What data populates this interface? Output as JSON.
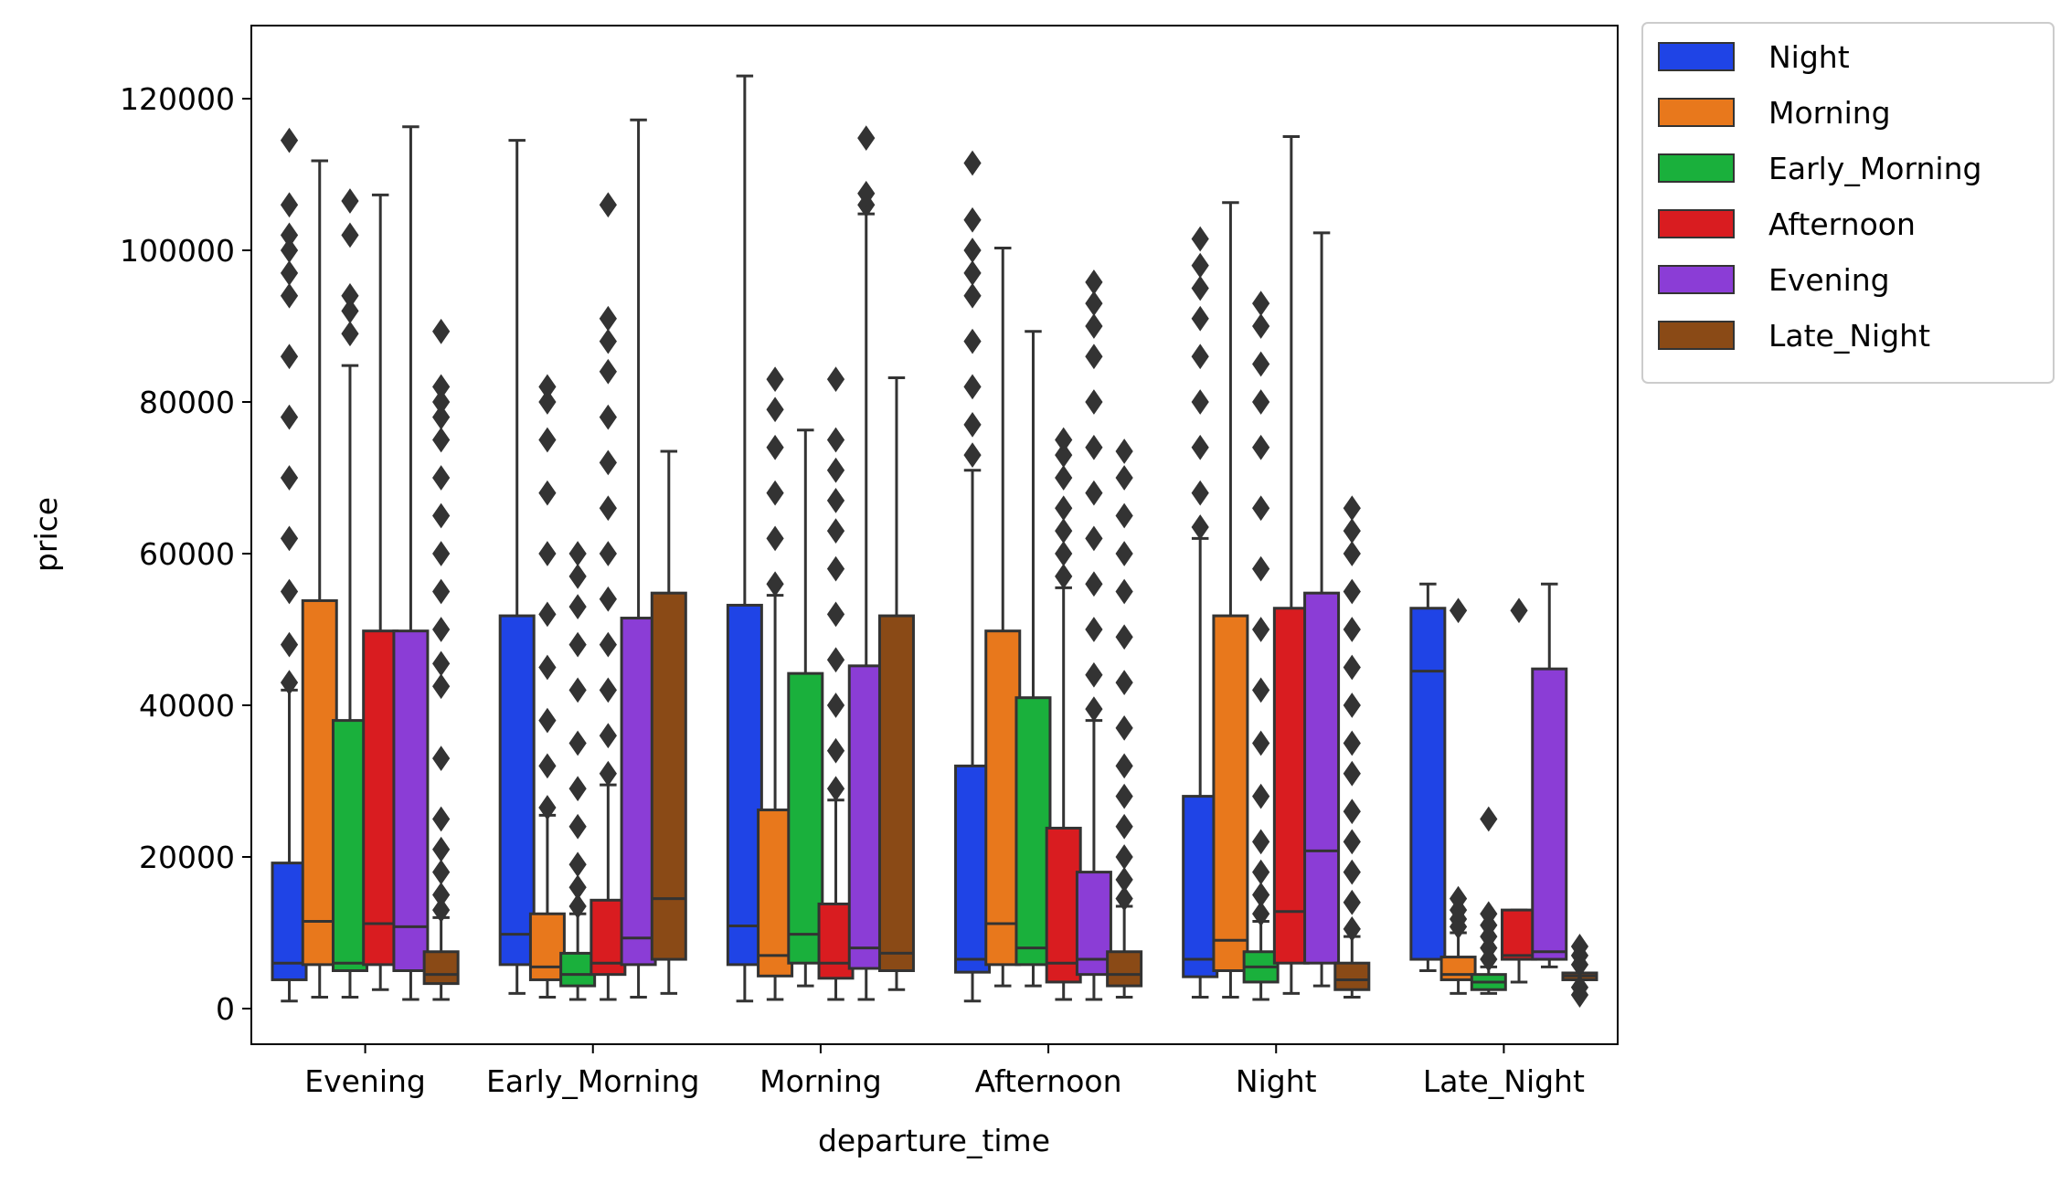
{
  "chart_data": {
    "type": "box",
    "xlabel": "departure_time",
    "ylabel": "price",
    "ylim": [
      -5000,
      129000
    ],
    "yticks": [
      0,
      20000,
      40000,
      60000,
      80000,
      100000,
      120000
    ],
    "ytick_labels": [
      "0",
      "20000",
      "40000",
      "60000",
      "80000",
      "100000",
      "120000"
    ],
    "categories": [
      "Evening",
      "Early_Morning",
      "Morning",
      "Afternoon",
      "Night",
      "Late_Night"
    ],
    "legend_position": "outside-top-right",
    "series": [
      {
        "name": "Night",
        "color": "#1f44e6",
        "boxes": [
          {
            "whislo": 1000,
            "q1": 3800,
            "med": 6000,
            "q3": 19200,
            "whishi": 42000,
            "fliers": [
              43000,
              48000,
              55000,
              62000,
              70000,
              78000,
              86000,
              94000,
              97000,
              100000,
              102000,
              106000,
              114500
            ]
          },
          {
            "whislo": 2000,
            "q1": 5800,
            "med": 9800,
            "q3": 51800,
            "whishi": 114500,
            "fliers": []
          },
          {
            "whislo": 1000,
            "q1": 5800,
            "med": 10900,
            "q3": 53200,
            "whishi": 123000,
            "fliers": []
          },
          {
            "whislo": 1000,
            "q1": 4800,
            "med": 6500,
            "q3": 32000,
            "whishi": 71000,
            "fliers": [
              73000,
              77000,
              82000,
              88000,
              94000,
              97000,
              100000,
              104000,
              111500
            ]
          },
          {
            "whislo": 1500,
            "q1": 4200,
            "med": 6500,
            "q3": 28000,
            "whishi": 62000,
            "fliers": [
              63500,
              68000,
              74000,
              80000,
              86000,
              91000,
              95000,
              98000,
              101500
            ]
          },
          {
            "whislo": 5000,
            "q1": 6500,
            "med": 44500,
            "q3": 52800,
            "whishi": 56000,
            "fliers": []
          }
        ]
      },
      {
        "name": "Morning",
        "color": "#e8781c",
        "boxes": [
          {
            "whislo": 1500,
            "q1": 5800,
            "med": 11500,
            "q3": 53800,
            "whishi": 111800,
            "fliers": []
          },
          {
            "whislo": 1500,
            "q1": 3800,
            "med": 5500,
            "q3": 12500,
            "whishi": 25500,
            "fliers": [
              26500,
              32000,
              38000,
              45000,
              52000,
              60000,
              68000,
              75000,
              80000,
              82000
            ]
          },
          {
            "whislo": 1200,
            "q1": 4300,
            "med": 7000,
            "q3": 26200,
            "whishi": 54500,
            "fliers": [
              56000,
              62000,
              68000,
              74000,
              79000,
              83000
            ]
          },
          {
            "whislo": 3000,
            "q1": 5800,
            "med": 11200,
            "q3": 49800,
            "whishi": 100300,
            "fliers": []
          },
          {
            "whislo": 1500,
            "q1": 5000,
            "med": 9000,
            "q3": 51800,
            "whishi": 106300,
            "fliers": []
          },
          {
            "whislo": 2000,
            "q1": 3800,
            "med": 4500,
            "q3": 6800,
            "whishi": 10000,
            "fliers": [
              10800,
              11800,
              13000,
              14500,
              52500
            ]
          }
        ]
      },
      {
        "name": "Early_Morning",
        "color": "#1ab03c",
        "boxes": [
          {
            "whislo": 1500,
            "q1": 5000,
            "med": 6000,
            "q3": 38000,
            "whishi": 84800,
            "fliers": [
              89000,
              92000,
              94000,
              102000,
              106500
            ]
          },
          {
            "whislo": 1200,
            "q1": 3000,
            "med": 4500,
            "q3": 7300,
            "whishi": 12500,
            "fliers": [
              13500,
              16000,
              19000,
              24000,
              29000,
              35000,
              42000,
              48000,
              53000,
              57000,
              60000
            ]
          },
          {
            "whislo": 3000,
            "q1": 6000,
            "med": 9800,
            "q3": 44200,
            "whishi": 76300,
            "fliers": []
          },
          {
            "whislo": 3000,
            "q1": 5800,
            "med": 8000,
            "q3": 41000,
            "whishi": 89300,
            "fliers": []
          },
          {
            "whislo": 1200,
            "q1": 3500,
            "med": 5500,
            "q3": 7500,
            "whishi": 11500,
            "fliers": [
              12500,
              15000,
              18000,
              22000,
              28000,
              35000,
              42000,
              50000,
              58000,
              66000,
              74000,
              80000,
              85000,
              90000,
              93000
            ]
          },
          {
            "whislo": 2000,
            "q1": 2500,
            "med": 3500,
            "q3": 4500,
            "whishi": 5500,
            "fliers": [
              6500,
              8000,
              9500,
              11000,
              12500,
              25000
            ]
          }
        ]
      },
      {
        "name": "Afternoon",
        "color": "#d91c20",
        "boxes": [
          {
            "whislo": 2500,
            "q1": 5800,
            "med": 11200,
            "q3": 49800,
            "whishi": 107300,
            "fliers": []
          },
          {
            "whislo": 1200,
            "q1": 4500,
            "med": 6000,
            "q3": 14300,
            "whishi": 29500,
            "fliers": [
              31000,
              36000,
              42000,
              48000,
              54000,
              60000,
              66000,
              72000,
              78000,
              84000,
              88000,
              91000,
              106000
            ]
          },
          {
            "whislo": 1200,
            "q1": 4000,
            "med": 6000,
            "q3": 13800,
            "whishi": 27500,
            "fliers": [
              29000,
              34000,
              40000,
              46000,
              52000,
              58000,
              63000,
              67000,
              71000,
              75000,
              83000
            ]
          },
          {
            "whislo": 1200,
            "q1": 3500,
            "med": 6000,
            "q3": 23800,
            "whishi": 55500,
            "fliers": [
              57000,
              60000,
              63000,
              66000,
              70000,
              73000,
              75000
            ]
          },
          {
            "whislo": 2000,
            "q1": 6000,
            "med": 12800,
            "q3": 52800,
            "whishi": 115000,
            "fliers": []
          },
          {
            "whislo": 3500,
            "q1": 6500,
            "med": 7000,
            "q3": 13000,
            "whishi": 13000,
            "fliers": [
              52500
            ]
          }
        ]
      },
      {
        "name": "Evening",
        "color": "#8b3dd6",
        "boxes": [
          {
            "whislo": 1200,
            "q1": 5000,
            "med": 10800,
            "q3": 49800,
            "whishi": 116300,
            "fliers": []
          },
          {
            "whislo": 1500,
            "q1": 5800,
            "med": 9300,
            "q3": 51500,
            "whishi": 117200,
            "fliers": []
          },
          {
            "whislo": 1200,
            "q1": 5300,
            "med": 8000,
            "q3": 45200,
            "whishi": 104800,
            "fliers": [
              106000,
              107500,
              114800
            ]
          },
          {
            "whislo": 1200,
            "q1": 4500,
            "med": 6500,
            "q3": 18000,
            "whishi": 38000,
            "fliers": [
              39500,
              44000,
              50000,
              56000,
              62000,
              68000,
              74000,
              80000,
              86000,
              90000,
              93000,
              95800
            ]
          },
          {
            "whislo": 3000,
            "q1": 6000,
            "med": 20800,
            "q3": 54800,
            "whishi": 102300,
            "fliers": []
          },
          {
            "whislo": 5500,
            "q1": 6500,
            "med": 7500,
            "q3": 44800,
            "whishi": 56000,
            "fliers": []
          }
        ]
      },
      {
        "name": "Late_Night",
        "color": "#8a4a16",
        "boxes": [
          {
            "whislo": 1200,
            "q1": 3300,
            "med": 4500,
            "q3": 7500,
            "whishi": 12000,
            "fliers": [
              13000,
              15000,
              18000,
              21000,
              25000,
              33000,
              42500,
              45500,
              50000,
              55000,
              60000,
              65000,
              70000,
              75000,
              78000,
              80000,
              82000,
              89300
            ]
          },
          {
            "whislo": 2000,
            "q1": 6500,
            "med": 14500,
            "q3": 54800,
            "whishi": 73500,
            "fliers": []
          },
          {
            "whislo": 2500,
            "q1": 5000,
            "med": 7300,
            "q3": 51800,
            "whishi": 83200,
            "fliers": []
          },
          {
            "whislo": 1500,
            "q1": 3000,
            "med": 4500,
            "q3": 7500,
            "whishi": 13500,
            "fliers": [
              14500,
              17000,
              20000,
              24000,
              28000,
              32000,
              37000,
              43000,
              49000,
              55000,
              60000,
              65000,
              70000,
              73500
            ]
          },
          {
            "whislo": 1500,
            "q1": 2500,
            "med": 3800,
            "q3": 6000,
            "whishi": 9500,
            "fliers": [
              10500,
              14000,
              18000,
              22000,
              26000,
              31000,
              35000,
              40000,
              45000,
              50000,
              55000,
              60000,
              63000,
              66000
            ]
          },
          {
            "whislo": 3800,
            "q1": 3800,
            "med": 4300,
            "q3": 4700,
            "whishi": 4700,
            "fliers": [
              1800,
              2800,
              5800,
              7000,
              8200
            ]
          }
        ]
      }
    ]
  }
}
